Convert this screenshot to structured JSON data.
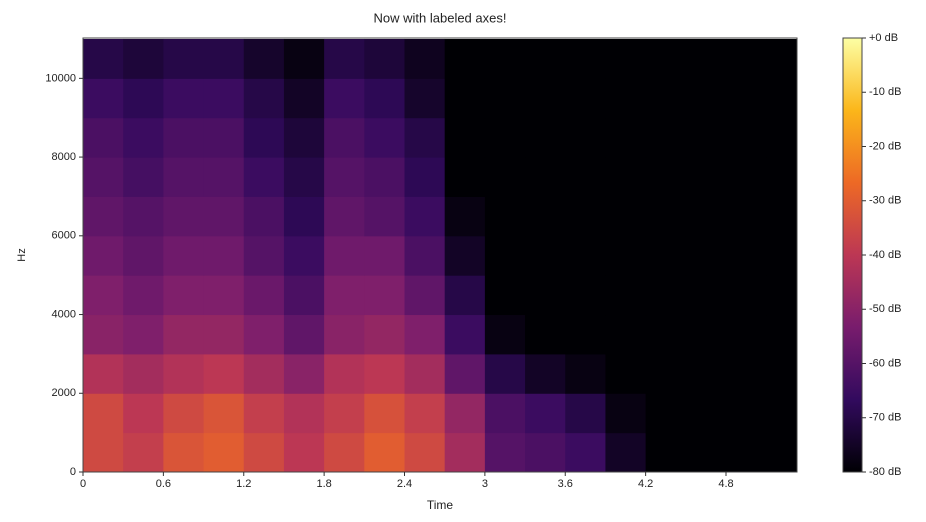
{
  "chart_data": {
    "type": "spectrogram",
    "title": "Now with labeled axes!",
    "x_label": "Time",
    "y_label": "Hz",
    "xlim": [
      0,
      5.33
    ],
    "xticks": [
      0,
      0.6,
      1.2,
      1.8,
      2.4,
      3,
      3.6,
      4.2,
      4.8
    ],
    "ylim": [
      0,
      11025
    ],
    "yticks": [
      0,
      2000,
      4000,
      6000,
      8000,
      10000
    ],
    "time_edges": [
      0,
      0.3,
      0.6,
      0.9,
      1.2,
      1.5,
      1.8,
      2.1,
      2.4,
      2.7,
      3.0,
      3.3,
      3.6,
      3.9,
      4.2,
      4.5,
      4.8,
      5.1,
      5.4
    ],
    "freq_edges": [
      0,
      1000,
      2000,
      3000,
      4000,
      5000,
      6000,
      7000,
      8000,
      9000,
      10000,
      11000
    ],
    "values": [
      [
        -35,
        -38,
        -32,
        -30,
        -35,
        -40,
        -35,
        -30,
        -35,
        -45,
        -60,
        -62,
        -65,
        -75,
        -80,
        -80,
        -80,
        -80
      ],
      [
        -35,
        -40,
        -35,
        -32,
        -38,
        -42,
        -38,
        -33,
        -38,
        -48,
        -62,
        -65,
        -70,
        -78,
        -80,
        -80,
        -80,
        -80
      ],
      [
        -42,
        -45,
        -42,
        -40,
        -45,
        -50,
        -42,
        -40,
        -45,
        -58,
        -70,
        -75,
        -78,
        -80,
        -80,
        -80,
        -80,
        -80
      ],
      [
        -50,
        -52,
        -48,
        -48,
        -52,
        -58,
        -50,
        -48,
        -52,
        -65,
        -78,
        -80,
        -80,
        -80,
        -80,
        -80,
        -80,
        -80
      ],
      [
        -52,
        -55,
        -52,
        -52,
        -56,
        -62,
        -52,
        -52,
        -58,
        -70,
        -80,
        -80,
        -80,
        -80,
        -80,
        -80,
        -80,
        -80
      ],
      [
        -55,
        -58,
        -55,
        -55,
        -60,
        -65,
        -55,
        -55,
        -62,
        -75,
        -80,
        -80,
        -80,
        -80,
        -80,
        -80,
        -80,
        -80
      ],
      [
        -58,
        -60,
        -58,
        -58,
        -62,
        -68,
        -58,
        -60,
        -65,
        -78,
        -80,
        -80,
        -80,
        -80,
        -80,
        -80,
        -80,
        -80
      ],
      [
        -60,
        -63,
        -60,
        -60,
        -65,
        -70,
        -60,
        -62,
        -68,
        -80,
        -80,
        -80,
        -80,
        -80,
        -80,
        -80,
        -80,
        -80
      ],
      [
        -62,
        -65,
        -62,
        -62,
        -68,
        -72,
        -62,
        -65,
        -70,
        -80,
        -80,
        -80,
        -80,
        -80,
        -80,
        -80,
        -80,
        -80
      ],
      [
        -65,
        -68,
        -65,
        -65,
        -70,
        -75,
        -65,
        -68,
        -74,
        -80,
        -80,
        -80,
        -80,
        -80,
        -80,
        -80,
        -80,
        -80
      ],
      [
        -70,
        -72,
        -70,
        -70,
        -74,
        -78,
        -70,
        -72,
        -76,
        -80,
        -80,
        -80,
        -80,
        -80,
        -80,
        -80,
        -80,
        -80
      ]
    ],
    "clim": [
      -80,
      0
    ],
    "cticks": [
      {
        "value": 0,
        "label": "+0 dB"
      },
      {
        "value": -10,
        "label": "-10 dB"
      },
      {
        "value": -20,
        "label": "-20 dB"
      },
      {
        "value": -30,
        "label": "-30 dB"
      },
      {
        "value": -40,
        "label": "-40 dB"
      },
      {
        "value": -50,
        "label": "-50 dB"
      },
      {
        "value": -60,
        "label": "-60 dB"
      },
      {
        "value": -70,
        "label": "-70 dB"
      },
      {
        "value": -80,
        "label": "-80 dB"
      }
    ],
    "colormap": [
      "#000004",
      "#320a5e",
      "#781c6d",
      "#bc3754",
      "#ed6925",
      "#fbb61a",
      "#fcffa4"
    ]
  }
}
